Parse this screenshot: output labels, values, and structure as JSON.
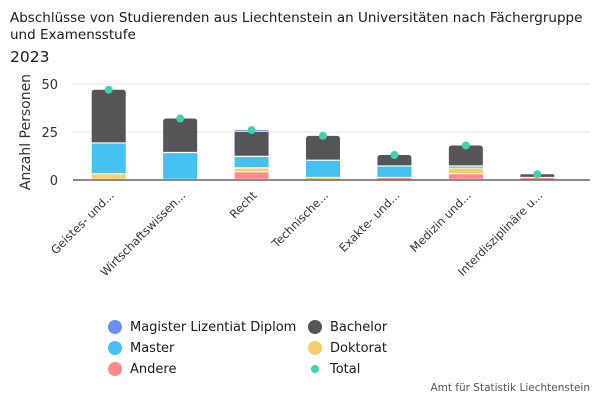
{
  "title": "Abschlüsse von Studierenden aus Liechtenstein an Universitäten nach Fächergruppe und Examensstufe",
  "subtitle": "2023",
  "source": "Amt für Statistik Liechtenstein",
  "chart_data": {
    "type": "bar",
    "stacked": true,
    "title": "Abschlüsse von Studierenden aus Liechtenstein an Universitäten nach Fächergruppe und Examensstufe",
    "subtitle": "2023",
    "xlabel": "",
    "ylabel": "Anzahl Personen",
    "ylim": [
      0,
      50
    ],
    "yticks": [
      0,
      25,
      50
    ],
    "grid": true,
    "legend_position": "bottom",
    "categories": [
      "Geistes- und...",
      "Wirtschaftswissen...",
      "Recht",
      "Technische...",
      "Exakte- und...",
      "Medizin und...",
      "Interdisziplinäre u..."
    ],
    "series": [
      {
        "name": "Andere",
        "color": "#ff8a8a",
        "values": [
          0,
          0,
          4,
          0,
          1,
          3,
          1
        ]
      },
      {
        "name": "Doktorat",
        "color": "#f5cd6a",
        "values": [
          3,
          0,
          2,
          1,
          0,
          3,
          0
        ]
      },
      {
        "name": "Master",
        "color": "#45c1ef",
        "values": [
          16,
          14,
          6,
          9,
          6,
          1,
          0
        ]
      },
      {
        "name": "Bachelor",
        "color": "#555558",
        "values": [
          28,
          18,
          13,
          13,
          6,
          11,
          2
        ]
      },
      {
        "name": "Magister Lizentiat Diplom",
        "color": "#6b8ef5",
        "values": [
          0,
          0,
          1,
          0,
          0,
          0,
          0
        ]
      }
    ],
    "total": {
      "name": "Total",
      "color": "#3fd1b0",
      "values": [
        47,
        32,
        26,
        23,
        13,
        18,
        3
      ]
    }
  },
  "legend": [
    {
      "label": "Magister Lizentiat Diplom",
      "color": "#6b8ef5",
      "shape": "circle"
    },
    {
      "label": "Bachelor",
      "color": "#555558",
      "shape": "circle"
    },
    {
      "label": "Master",
      "color": "#45c1ef",
      "shape": "circle"
    },
    {
      "label": "Doktorat",
      "color": "#f5cd6a",
      "shape": "circle"
    },
    {
      "label": "Andere",
      "color": "#ff8a8a",
      "shape": "circle"
    },
    {
      "label": "Total",
      "color": "#3fd1b0",
      "shape": "dot"
    }
  ]
}
